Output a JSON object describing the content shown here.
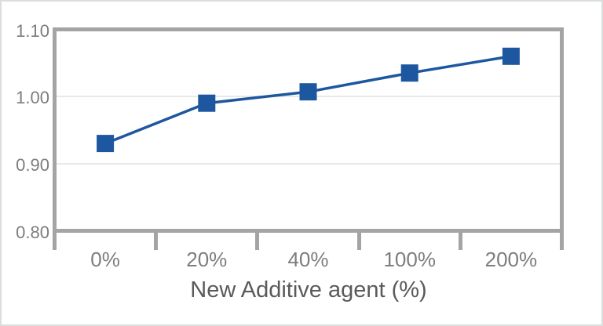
{
  "chart_data": {
    "type": "line",
    "title": "",
    "xlabel": "New Additive agent (%)",
    "ylabel": "",
    "categories": [
      "0%",
      "20%",
      "40%",
      "100%",
      "200%"
    ],
    "values": [
      0.93,
      0.99,
      1.007,
      1.035,
      1.06
    ],
    "ylim": [
      0.8,
      1.1
    ],
    "yticks": [
      {
        "value": 1.1,
        "label": "1.10"
      },
      {
        "value": 1.0,
        "label": "1.00"
      },
      {
        "value": 0.9,
        "label": "0.90"
      },
      {
        "value": 0.8,
        "label": "0.80"
      }
    ],
    "grid": "horizontal gridlines at labeled y values inside the frame",
    "legend_position": "none",
    "marker": "square"
  },
  "colors": {
    "series_blue": "#1d579f",
    "axis_frame_gray": "#a4a4a4",
    "gridline_gray": "#e8e8e8",
    "tick_label_gray": "#7d7d7d",
    "axis_title_gray": "#5a5a5a",
    "page_border_gray": "#dcdddd",
    "background": "#ffffff"
  }
}
